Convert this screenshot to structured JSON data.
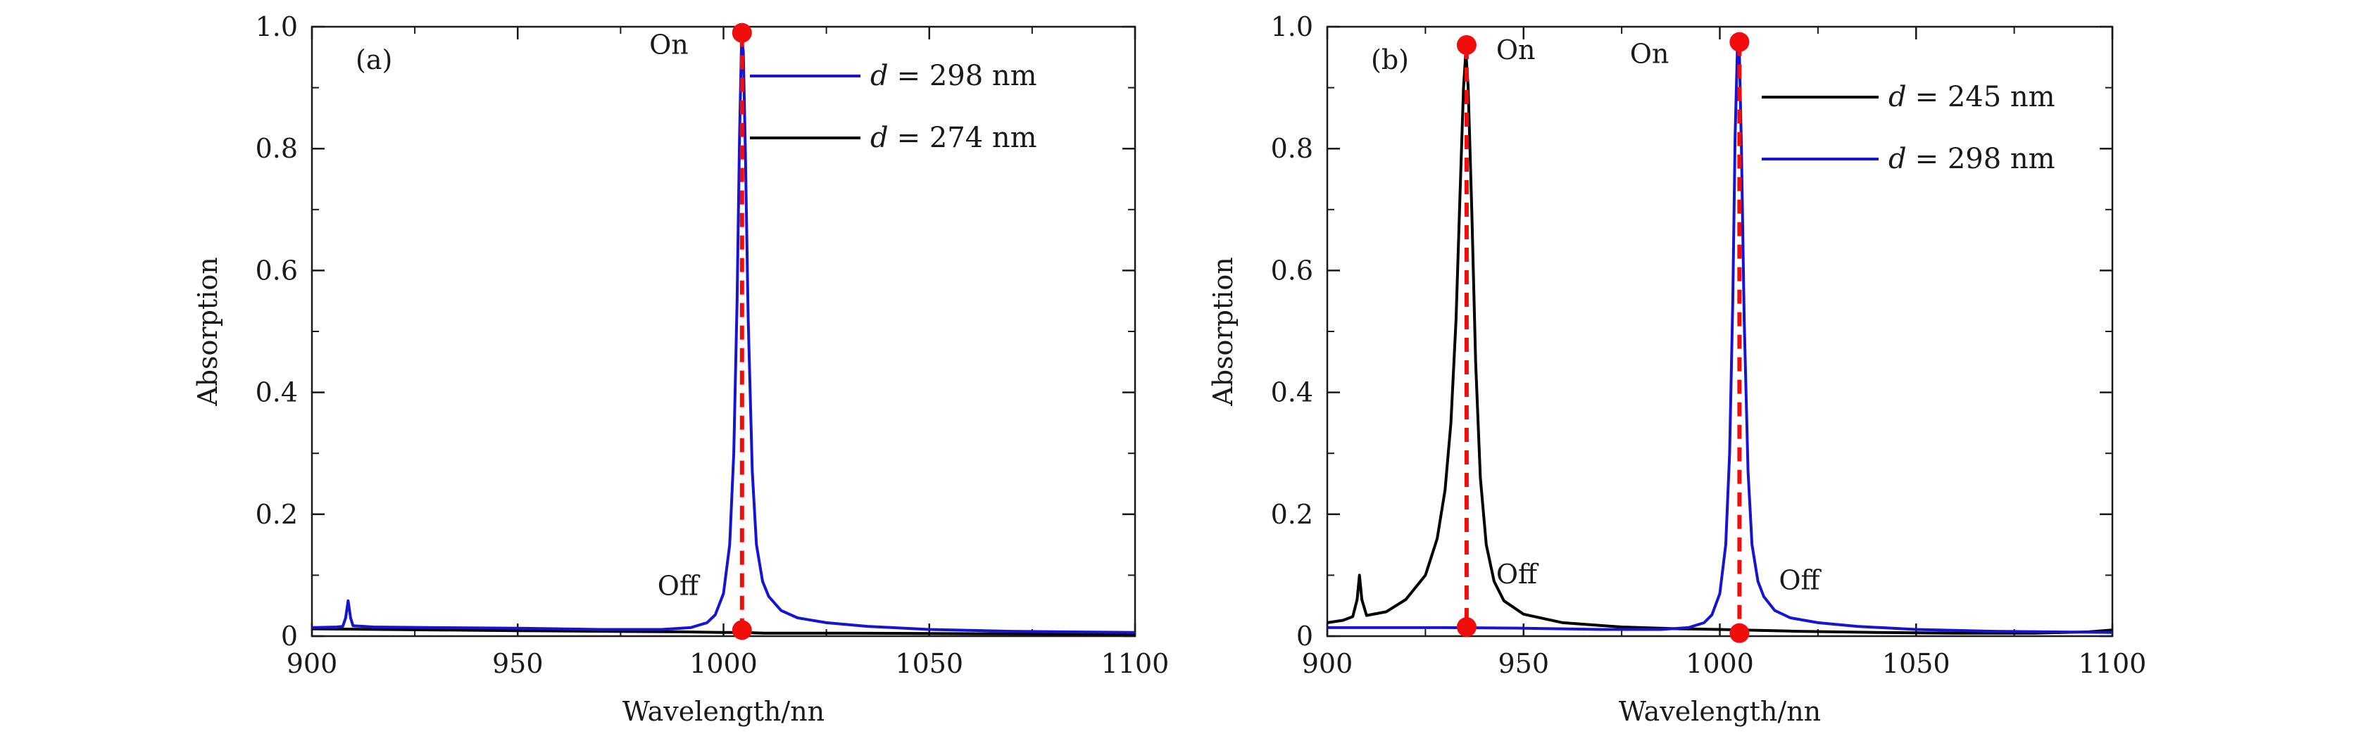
{
  "chart_data": [
    {
      "type": "line",
      "panel_label": "(a)",
      "xlabel": "Wavelength/nn",
      "ylabel": "Absorption",
      "xlim": [
        900,
        1100
      ],
      "ylim": [
        0,
        1.0
      ],
      "x_ticks": [
        "900",
        "950",
        "1000",
        "1050",
        "1100"
      ],
      "y_ticks": [
        "0",
        "0.2",
        "0.4",
        "0.6",
        "0.8",
        "1.0"
      ],
      "series": [
        {
          "name": "d = 274 nm",
          "legend_var": "d",
          "legend_rest": "= 274  nm",
          "color": "#000000",
          "points": [
            [
              900,
              0.012
            ],
            [
              950,
              0.009
            ],
            [
              990,
              0.007
            ],
            [
              1000,
              0.006
            ],
            [
              1004.5,
              0.006
            ],
            [
              1010,
              0.005
            ],
            [
              1030,
              0.005
            ],
            [
              1060,
              0.004
            ],
            [
              1100,
              0.003
            ]
          ]
        },
        {
          "name": "d = 298 nm",
          "legend_var": "d",
          "legend_rest": "= 298  nm",
          "color": "#1414d2",
          "points": [
            [
              900,
              0.014
            ],
            [
              906,
              0.015
            ],
            [
              907.5,
              0.016
            ],
            [
              908.2,
              0.03
            ],
            [
              908.8,
              0.058
            ],
            [
              909.4,
              0.03
            ],
            [
              910,
              0.017
            ],
            [
              915,
              0.015
            ],
            [
              930,
              0.014
            ],
            [
              950,
              0.013
            ],
            [
              970,
              0.011
            ],
            [
              985,
              0.011
            ],
            [
              992,
              0.014
            ],
            [
              996,
              0.022
            ],
            [
              998,
              0.035
            ],
            [
              1000,
              0.07
            ],
            [
              1001.5,
              0.15
            ],
            [
              1002.5,
              0.3
            ],
            [
              1003.3,
              0.55
            ],
            [
              1003.9,
              0.82
            ],
            [
              1004.4,
              0.98
            ],
            [
              1004.8,
              0.96
            ],
            [
              1005.3,
              0.8
            ],
            [
              1006,
              0.52
            ],
            [
              1007,
              0.27
            ],
            [
              1008,
              0.15
            ],
            [
              1009.5,
              0.09
            ],
            [
              1011,
              0.065
            ],
            [
              1014,
              0.042
            ],
            [
              1018,
              0.03
            ],
            [
              1025,
              0.022
            ],
            [
              1035,
              0.016
            ],
            [
              1050,
              0.011
            ],
            [
              1070,
              0.008
            ],
            [
              1100,
              0.006
            ]
          ]
        }
      ],
      "markers": [
        {
          "x": 1004.5,
          "y_on": 0.99,
          "y_off": 0.01,
          "on_label": "On",
          "off_label": "Off"
        }
      ],
      "marker_color": "#f20d0d"
    },
    {
      "type": "line",
      "panel_label": "(b)",
      "xlabel": "Wavelength/nn",
      "ylabel": "Absorption",
      "xlim": [
        900,
        1100
      ],
      "ylim": [
        0,
        1.0
      ],
      "x_ticks": [
        "900",
        "950",
        "1000",
        "1050",
        "1100"
      ],
      "y_ticks": [
        "0",
        "0.2",
        "0.4",
        "0.6",
        "0.8",
        "1.0"
      ],
      "series": [
        {
          "name": "d = 245 nm",
          "legend_var": "d",
          "legend_rest": "= 245  nm",
          "color": "#000000",
          "points": [
            [
              900,
              0.022
            ],
            [
              904,
              0.026
            ],
            [
              906.5,
              0.032
            ],
            [
              907.6,
              0.06
            ],
            [
              908.2,
              0.1
            ],
            [
              908.8,
              0.06
            ],
            [
              910,
              0.034
            ],
            [
              915,
              0.04
            ],
            [
              920,
              0.06
            ],
            [
              925,
              0.1
            ],
            [
              928,
              0.16
            ],
            [
              930,
              0.24
            ],
            [
              931.5,
              0.35
            ],
            [
              932.8,
              0.52
            ],
            [
              933.8,
              0.72
            ],
            [
              934.7,
              0.9
            ],
            [
              935.3,
              0.96
            ],
            [
              935.9,
              0.9
            ],
            [
              936.8,
              0.7
            ],
            [
              937.8,
              0.45
            ],
            [
              939,
              0.26
            ],
            [
              940.5,
              0.15
            ],
            [
              942.5,
              0.09
            ],
            [
              945,
              0.058
            ],
            [
              950,
              0.036
            ],
            [
              960,
              0.022
            ],
            [
              975,
              0.015
            ],
            [
              990,
              0.012
            ],
            [
              1000,
              0.011
            ],
            [
              1020,
              0.008
            ],
            [
              1040,
              0.006
            ],
            [
              1060,
              0.005
            ],
            [
              1080,
              0.005
            ],
            [
              1094,
              0.007
            ],
            [
              1100,
              0.01
            ]
          ]
        },
        {
          "name": "d = 298 nm",
          "legend_var": "d",
          "legend_rest": "= 298  nm",
          "color": "#1414d2",
          "points": [
            [
              900,
              0.014
            ],
            [
              930,
              0.014
            ],
            [
              950,
              0.013
            ],
            [
              970,
              0.011
            ],
            [
              985,
              0.011
            ],
            [
              992,
              0.014
            ],
            [
              996,
              0.022
            ],
            [
              998,
              0.035
            ],
            [
              1000,
              0.07
            ],
            [
              1001.5,
              0.15
            ],
            [
              1002.5,
              0.3
            ],
            [
              1003.3,
              0.55
            ],
            [
              1003.9,
              0.82
            ],
            [
              1004.5,
              0.97
            ],
            [
              1005,
              0.95
            ],
            [
              1005.5,
              0.8
            ],
            [
              1006.2,
              0.52
            ],
            [
              1007.2,
              0.27
            ],
            [
              1008.2,
              0.15
            ],
            [
              1009.7,
              0.09
            ],
            [
              1011.2,
              0.065
            ],
            [
              1014,
              0.042
            ],
            [
              1018,
              0.03
            ],
            [
              1025,
              0.022
            ],
            [
              1035,
              0.016
            ],
            [
              1050,
              0.011
            ],
            [
              1070,
              0.008
            ],
            [
              1100,
              0.006
            ]
          ]
        }
      ],
      "markers": [
        {
          "x": 935.5,
          "y_on": 0.97,
          "y_off": 0.015,
          "on_label": "On",
          "off_label": "Off"
        },
        {
          "x": 1005,
          "y_on": 0.975,
          "y_off": 0.005,
          "on_label": "On",
          "off_label": "Off"
        }
      ],
      "marker_color": "#f20d0d"
    }
  ]
}
